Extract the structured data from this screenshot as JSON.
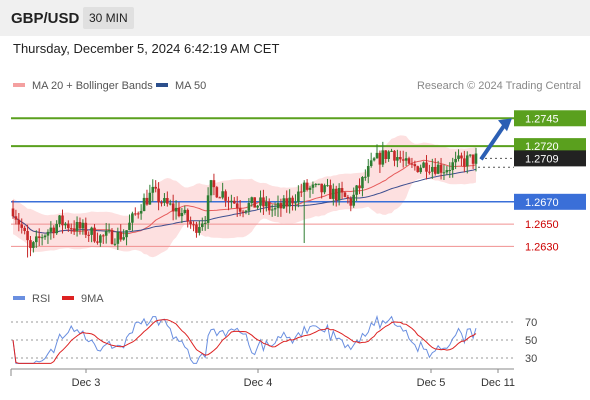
{
  "header": {
    "symbol": "GBP/USD",
    "timeframe": "30 MIN"
  },
  "datetime": "Thursday, December 5, 2024 6:42:19 AM CET",
  "legend": {
    "main": [
      {
        "label": "MA 20 + Bollinger Bands",
        "color": "#f4a0a0"
      },
      {
        "label": "MA 50",
        "color": "#2c4f8c"
      }
    ],
    "rsi": [
      {
        "label": "RSI",
        "color": "#6a8fe0"
      },
      {
        "label": "9MA",
        "color": "#dd2222"
      }
    ]
  },
  "copyright": "Research © 2024 Trading Central",
  "colors": {
    "candle_up": "#2e7d32",
    "candle_down": "#c62828",
    "target_line": "#5aa01e",
    "pivot_line": "#3a6fd8",
    "support_line": "#f09090",
    "support_text": "#cc0000",
    "bb_fill": "#fde0e0",
    "ma20": "#e65a5a",
    "ma50": "#3e4f90",
    "arrow": "#2b5fb4",
    "price_tag": "#222222"
  },
  "chart_data": [
    {
      "type": "candlestick",
      "instrument": "GBP/USD",
      "timeframe": "30 MIN",
      "ylim": [
        1.2598,
        1.2765
      ],
      "x_labels": [
        "Dec 3",
        "Dec 4",
        "Dec 5",
        "Dec 11"
      ],
      "levels": [
        {
          "label": "1.2745",
          "value": 1.2745,
          "kind": "target"
        },
        {
          "label": "1.2720",
          "value": 1.272,
          "kind": "target"
        },
        {
          "label": "1.2709",
          "value": 1.2709,
          "kind": "last_price"
        },
        {
          "label": "1.2670",
          "value": 1.267,
          "kind": "pivot"
        },
        {
          "label": "1.2650",
          "value": 1.265,
          "kind": "support"
        },
        {
          "label": "1.2630",
          "value": 1.263,
          "kind": "support"
        }
      ],
      "series": [
        {
          "name": "MA 20 + Bollinger Bands"
        },
        {
          "name": "MA 50"
        }
      ],
      "forecast": {
        "from": 1.2709,
        "to": 1.2745,
        "direction": "up"
      }
    },
    {
      "type": "line",
      "indicator": "RSI",
      "ylim": [
        20,
        80
      ],
      "ticks": [
        "70",
        "50",
        "30"
      ],
      "tick_values": [
        70,
        50,
        30
      ],
      "series": [
        {
          "name": "RSI"
        },
        {
          "name": "9MA"
        }
      ]
    }
  ]
}
